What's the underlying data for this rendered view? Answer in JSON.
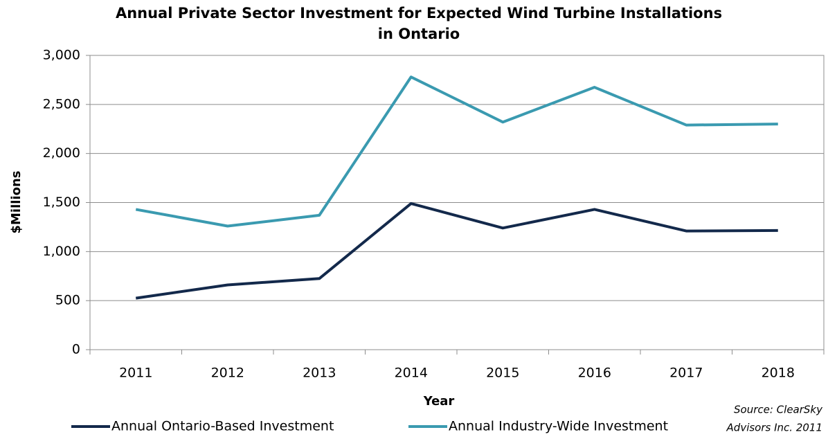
{
  "chart_data": {
    "type": "line",
    "title": [
      "Annual Private Sector Investment for Expected Wind Turbine Installations",
      "in Ontario"
    ],
    "x_label": "Year",
    "y_label": "$Millions",
    "source": [
      "Source: ClearSky",
      "Advisors Inc. 2011"
    ],
    "categories": [
      "2011",
      "2012",
      "2013",
      "2014",
      "2015",
      "2016",
      "2017",
      "2018"
    ],
    "series": [
      {
        "name": "Annual Ontario-Based Investment",
        "color": "#13294b",
        "values": [
          525,
          660,
          725,
          1490,
          1240,
          1430,
          1210,
          1215
        ]
      },
      {
        "name": "Annual Industry-Wide Investment",
        "color": "#3a9ab0",
        "values": [
          1430,
          1260,
          1370,
          2780,
          2320,
          2675,
          2290,
          2300
        ]
      }
    ],
    "ylim": [
      0,
      3000
    ],
    "yticks": [
      0,
      500,
      {
        "value": 1000,
        "label": "1,000"
      },
      {
        "value": 1500,
        "label": "1,500"
      },
      {
        "value": 2000,
        "label": "2,000"
      },
      {
        "value": 2500,
        "label": "2,500"
      },
      {
        "value": 3000,
        "label": "3,000"
      }
    ],
    "grid": true,
    "legend": "bottom"
  }
}
